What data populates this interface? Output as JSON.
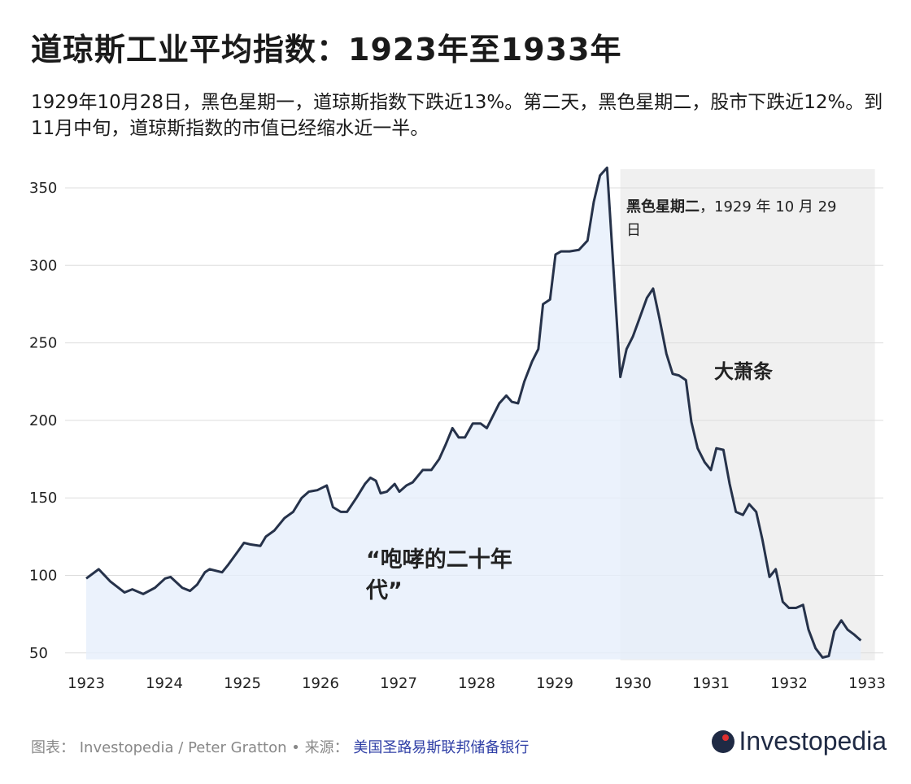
{
  "title": "道琼斯工业平均指数：1923年至1933年",
  "subtitle": "1929年10月28日，黑色星期一，道琼斯指数下跌近13%。第二天，黑色星期二，股市下跌近12%。到11月中旬，道琼斯指数的市值已经缩水近一半。",
  "footer": {
    "credit": "图表： Investopedia / Peter Gratton • 来源：",
    "source": "美国圣路易斯联邦储备银行",
    "logo": "Investopedia"
  },
  "colors": {
    "line": "#26324a",
    "area": "#e6effb",
    "shade": "#f0f0f0"
  },
  "chart_data": {
    "type": "area",
    "xlim": [
      1923,
      1933
    ],
    "ylim": [
      50,
      360
    ],
    "xticks": [
      "1923",
      "1924",
      "1925",
      "1926",
      "1927",
      "1928",
      "1929",
      "1930",
      "1931",
      "1932",
      "1933"
    ],
    "yticks": [
      50,
      100,
      150,
      200,
      250,
      300,
      350
    ],
    "grid": true,
    "shaded_region": {
      "from": 1929.84,
      "to": 1933.1
    },
    "annotations": [
      {
        "bold": "黑色星期二",
        "text": "，1929 年 10 月 29 日"
      },
      {
        "text": "大萧条"
      },
      {
        "text": "“咆哮的二十年代”"
      }
    ],
    "x": [
      1923.0,
      1923.16,
      1923.31,
      1923.49,
      1923.59,
      1923.73,
      1923.88,
      1924.01,
      1924.08,
      1924.23,
      1924.33,
      1924.42,
      1924.52,
      1924.58,
      1924.74,
      1924.82,
      1924.95,
      1925.02,
      1925.1,
      1925.23,
      1925.3,
      1925.41,
      1925.54,
      1925.65,
      1925.76,
      1925.85,
      1925.96,
      1926.08,
      1926.16,
      1926.26,
      1926.34,
      1926.46,
      1926.57,
      1926.64,
      1926.71,
      1926.77,
      1926.85,
      1926.95,
      1927.01,
      1927.1,
      1927.18,
      1927.31,
      1927.42,
      1927.52,
      1927.6,
      1927.69,
      1927.77,
      1927.85,
      1927.95,
      1928.05,
      1928.13,
      1928.21,
      1928.29,
      1928.38,
      1928.45,
      1928.53,
      1928.61,
      1928.71,
      1928.79,
      1928.85,
      1928.94,
      1929.01,
      1929.08,
      1929.19,
      1929.31,
      1929.42,
      1929.5,
      1929.58,
      1929.67,
      1929.84,
      1929.92,
      1930.0,
      1930.08,
      1930.18,
      1930.26,
      1930.34,
      1930.43,
      1930.51,
      1930.59,
      1930.68,
      1930.75,
      1930.83,
      1930.92,
      1931.0,
      1931.07,
      1931.16,
      1931.24,
      1931.32,
      1931.41,
      1931.49,
      1931.58,
      1931.66,
      1931.75,
      1931.83,
      1931.92,
      1932.0,
      1932.09,
      1932.18,
      1932.25,
      1932.34,
      1932.43,
      1932.51,
      1932.58,
      1932.67,
      1932.75,
      1932.83,
      1932.92
    ],
    "y": [
      98,
      104,
      96,
      89,
      91,
      88,
      92,
      98,
      99,
      92,
      90,
      94,
      102,
      104,
      102,
      107,
      116,
      121,
      120,
      119,
      125,
      129,
      137,
      141,
      150,
      154,
      155,
      158,
      144,
      141,
      141,
      150,
      159,
      163,
      161,
      153,
      154,
      159,
      154,
      158,
      160,
      168,
      168,
      175,
      184,
      195,
      189,
      189,
      198,
      198,
      195,
      203,
      211,
      216,
      212,
      211,
      225,
      238,
      246,
      275,
      278,
      307,
      309,
      309,
      310,
      316,
      341,
      358,
      363,
      228,
      246,
      254,
      265,
      279,
      285,
      266,
      243,
      230,
      229,
      226,
      199,
      182,
      173,
      168,
      182,
      181,
      159,
      141,
      139,
      146,
      141,
      123,
      99,
      104,
      83,
      79,
      79,
      81,
      65,
      53,
      47,
      48,
      64,
      71,
      65,
      62,
      58
    ]
  }
}
